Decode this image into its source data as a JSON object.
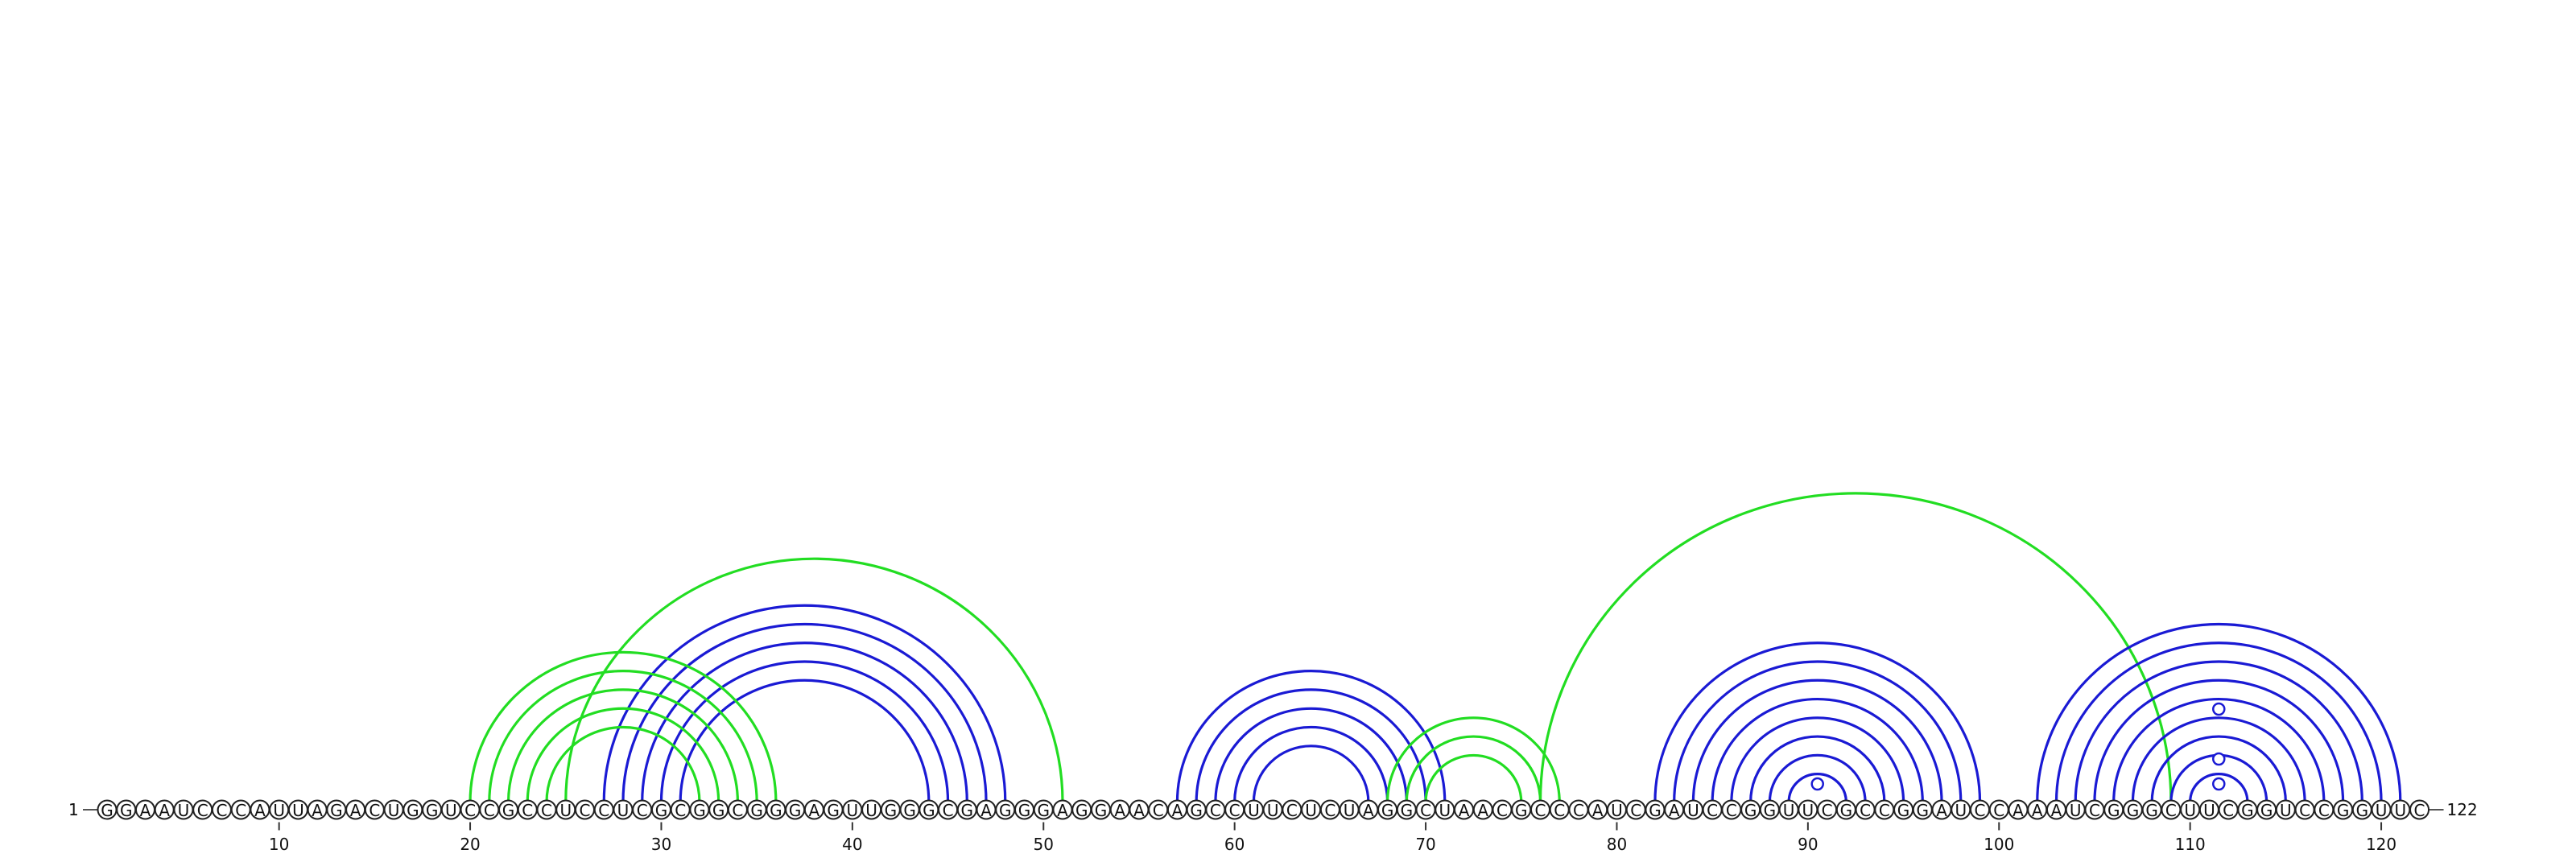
{
  "sequence": "GGAAUCCCAUUAGACUGGUCCGCCUCCUCGCGGCGGGAGUUGGGCGAGGGAGGAACAGCCUUCUCUAGGCUAACGCCCAUCGAUCCGGUUCGCCGGAUCCAAAUCGGGCUUCGGUCCGGUUC",
  "start_label": "1",
  "end_label": "122",
  "axis_ticks": [
    10,
    20,
    30,
    40,
    50,
    60,
    70,
    80,
    90,
    100,
    110,
    120
  ],
  "colors": {
    "blue": "#1a1ad4",
    "green": "#22dd22"
  },
  "helices": [
    {
      "color": "blue",
      "pairs": [
        [
          27,
          48
        ],
        [
          28,
          47
        ],
        [
          29,
          46
        ],
        [
          30,
          45
        ],
        [
          31,
          44
        ]
      ]
    },
    {
      "color": "green",
      "pairs": [
        [
          20,
          36
        ],
        [
          21,
          35
        ],
        [
          22,
          34
        ],
        [
          23,
          33
        ],
        [
          24,
          32
        ],
        [
          25,
          51
        ]
      ]
    },
    {
      "color": "blue",
      "pairs": [
        [
          57,
          71
        ],
        [
          58,
          70
        ],
        [
          59,
          69
        ],
        [
          60,
          68
        ],
        [
          61,
          67
        ]
      ]
    },
    {
      "color": "green",
      "pairs": [
        [
          68,
          77
        ],
        [
          69,
          76
        ],
        [
          70,
          75
        ]
      ]
    },
    {
      "color": "green",
      "pairs": [
        [
          76,
          109
        ]
      ]
    },
    {
      "color": "blue",
      "pairs": [
        [
          82,
          99
        ],
        [
          83,
          98
        ],
        [
          84,
          97
        ],
        [
          85,
          96
        ],
        [
          86,
          95
        ],
        [
          87,
          94
        ],
        [
          88,
          93
        ],
        [
          89,
          92
        ]
      ]
    },
    {
      "color": "blue",
      "pairs": [
        [
          102,
          121
        ],
        [
          103,
          120
        ],
        [
          104,
          119
        ],
        [
          105,
          118
        ],
        [
          106,
          117
        ],
        [
          107,
          116
        ],
        [
          108,
          115
        ],
        [
          109,
          114
        ],
        [
          110,
          113
        ]
      ]
    }
  ],
  "markers": [
    90.5,
    111.5,
    111.5,
    111.5
  ]
}
